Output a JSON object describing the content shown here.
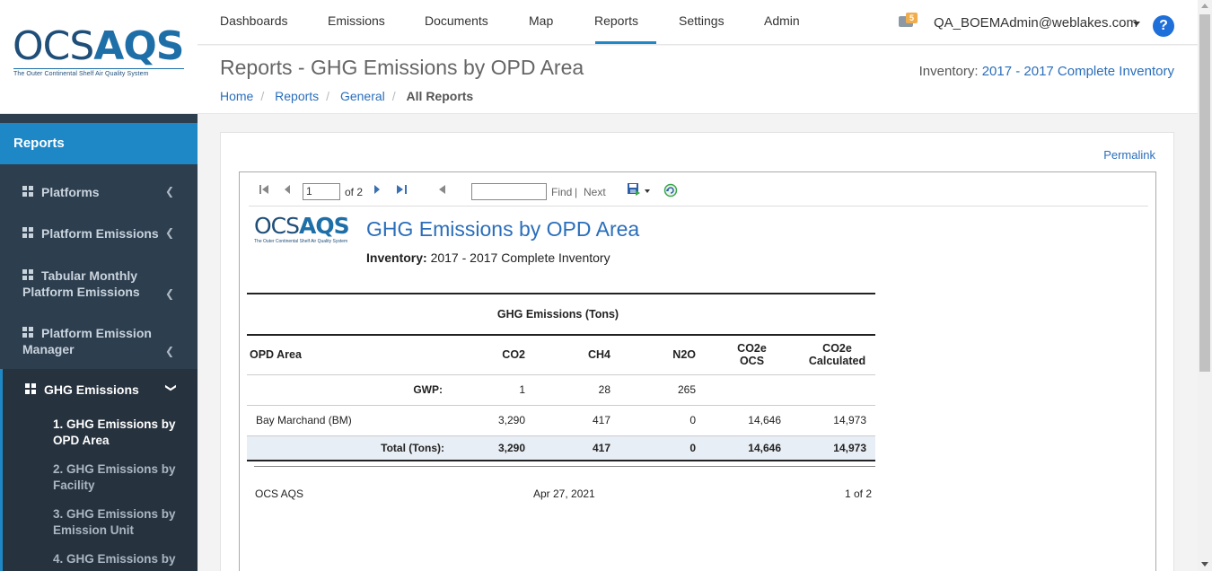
{
  "brand": {
    "logo_main": "OCS",
    "logo_accent": "AQS",
    "tagline": "The Outer Continental Shelf Air Quality System"
  },
  "nav": {
    "items": [
      "Dashboards",
      "Emissions",
      "Documents",
      "Map",
      "Reports",
      "Settings",
      "Admin"
    ],
    "active": "Reports",
    "mail_count": "5",
    "user": "QA_BOEMAdmin@weblakes.com",
    "help": "?"
  },
  "sidebar": {
    "header": "Reports",
    "items": [
      {
        "label": "Platforms"
      },
      {
        "label": "Platform Emissions"
      },
      {
        "label": "Tabular Monthly Platform Emissions"
      },
      {
        "label": "Platform Emission Manager"
      },
      {
        "label": "GHG Emissions"
      }
    ],
    "sub_items": [
      "1. GHG Emissions by OPD Area",
      "2. GHG Emissions by Facility",
      "3. GHG Emissions by Emission Unit",
      "4. GHG Emissions by"
    ]
  },
  "page": {
    "title": "Reports - GHG Emissions by OPD Area",
    "inventory_label": "Inventory:",
    "inventory_value": "2017 - 2017 Complete Inventory",
    "breadcrumbs": [
      "Home",
      "Reports",
      "General",
      "All Reports"
    ],
    "permalink": "Permalink"
  },
  "viewer": {
    "page_value": "1",
    "page_of": "of 2",
    "find": "Find",
    "next": "Next",
    "separator": "|"
  },
  "report": {
    "title": "GHG Emissions by OPD Area",
    "inventory_label": "Inventory:",
    "inventory_value": "2017 - 2017 Complete Inventory",
    "group_header": "GHG Emissions (Tons)",
    "columns": [
      "OPD Area",
      "CO2",
      "CH4",
      "N2O",
      "CO2e OCS",
      "CO2e Calculated"
    ],
    "gwp": {
      "label": "GWP:",
      "co2": "1",
      "ch4": "28",
      "n2o": "265"
    },
    "rows": [
      {
        "area": "Bay Marchand (BM)",
        "co2": "3,290",
        "ch4": "417",
        "n2o": "0",
        "co2e_ocs": "14,646",
        "co2e_calc": "14,973"
      }
    ],
    "total": {
      "label": "Total (Tons):",
      "co2": "3,290",
      "ch4": "417",
      "n2o": "0",
      "co2e_ocs": "14,646",
      "co2e_calc": "14,973"
    },
    "footer": {
      "left": "OCS AQS",
      "center": "Apr 27, 2021",
      "right": "1 of 2"
    }
  }
}
